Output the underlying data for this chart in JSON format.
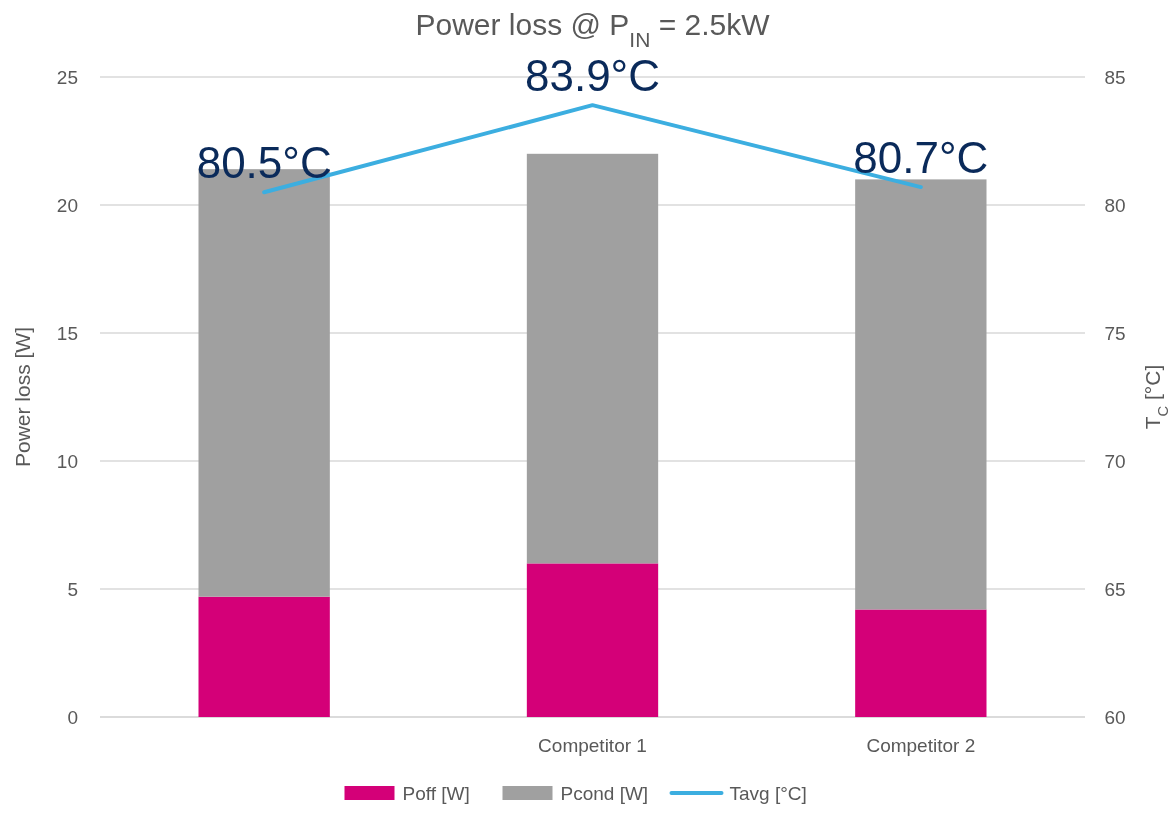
{
  "chart_data": {
    "type": "bar",
    "title": "Power loss @ P$_{IN}$ = 2.5kW",
    "ylabel": "Power loss [W]",
    "y2label": "T$_{C}$ [°C]",
    "categories": [
      null,
      "Competitor 1",
      "Competitor 2"
    ],
    "stacked": true,
    "series": [
      {
        "name": "Poff [W]",
        "color": "#d40078",
        "values": [
          4.7,
          6.0,
          4.2
        ]
      },
      {
        "name": "Pcond [W]",
        "color": "#a0a0a0",
        "values": [
          16.7,
          16.0,
          16.8
        ]
      },
      {
        "name": "Tavg [°C]",
        "type": "line",
        "axis": "y2",
        "color": "#3caee0",
        "values": [
          80.5,
          83.9,
          80.7
        ],
        "value_labels": [
          "80.5°C",
          "83.9°C",
          "80.7°C"
        ]
      }
    ],
    "ylim": [
      0,
      25
    ],
    "yticks": [
      0,
      5,
      10,
      15,
      20,
      25
    ],
    "y2lim": [
      60,
      85
    ],
    "y2ticks": [
      60,
      65,
      70,
      75,
      80,
      85
    ],
    "grid": "y",
    "legend": "bottom"
  }
}
